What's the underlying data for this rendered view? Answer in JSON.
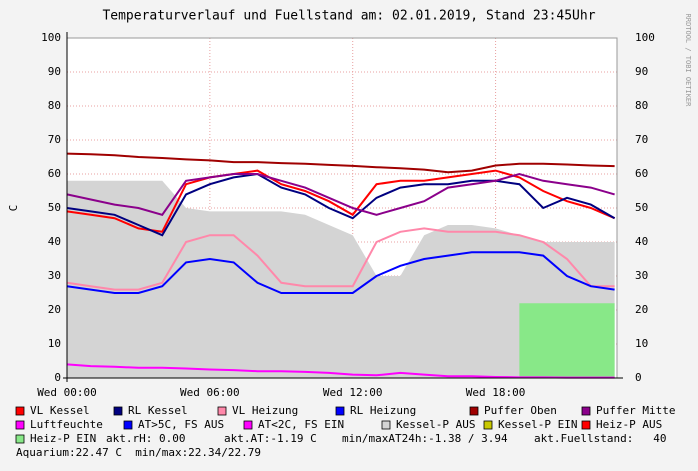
{
  "chart_data": {
    "type": "line",
    "title": "Temperaturverlauf und Fuellstand am: 02.01.2019, Stand 23:45Uhr",
    "ylabel": "C",
    "side_label": "RRDTOOL / TOBI OETIKER",
    "x": [
      0,
      1,
      2,
      3,
      4,
      5,
      6,
      7,
      8,
      9,
      10,
      11,
      12,
      13,
      14,
      15,
      16,
      17,
      18,
      19,
      20,
      21,
      22,
      23
    ],
    "xlim": [
      0,
      23.1
    ],
    "xticks": [
      {
        "value": 0,
        "label": "Wed 00:00"
      },
      {
        "value": 6,
        "label": "Wed 06:00"
      },
      {
        "value": 12,
        "label": "Wed 12:00"
      },
      {
        "value": 18,
        "label": "Wed 18:00"
      }
    ],
    "ylim": [
      0,
      100
    ],
    "yticks": [
      0,
      10,
      20,
      30,
      40,
      50,
      60,
      70,
      80,
      90,
      100
    ],
    "grid": true,
    "series": [
      {
        "name": "VL Kessel",
        "color": "#ff0000",
        "style": "line",
        "values": [
          49,
          48,
          47,
          44,
          43,
          57,
          59,
          60,
          61,
          57,
          55,
          52,
          48,
          57,
          58,
          58,
          59,
          60,
          61,
          59,
          55,
          52,
          50,
          47
        ]
      },
      {
        "name": "RL Kessel",
        "color": "#000080",
        "style": "line",
        "values": [
          50,
          49,
          48,
          45,
          42,
          54,
          57,
          59,
          60,
          56,
          54,
          50,
          47,
          53,
          56,
          57,
          57,
          58,
          58,
          57,
          50,
          53,
          51,
          47
        ]
      },
      {
        "name": "VL Heizung",
        "color": "#ff88aa",
        "style": "line",
        "values": [
          28,
          27,
          26,
          26,
          28,
          40,
          42,
          42,
          36,
          28,
          27,
          27,
          27,
          40,
          43,
          44,
          43,
          43,
          43,
          42,
          40,
          35,
          27,
          27
        ]
      },
      {
        "name": "RL Heizung",
        "color": "#0000ff",
        "style": "line",
        "values": [
          27,
          26,
          25,
          25,
          27,
          34,
          35,
          34,
          28,
          25,
          25,
          25,
          25,
          30,
          33,
          35,
          36,
          37,
          37,
          37,
          36,
          30,
          27,
          26
        ]
      },
      {
        "name": "Puffer Oben",
        "color": "#a00000",
        "style": "line",
        "values": [
          66,
          65.8,
          65.5,
          65,
          64.7,
          64.3,
          64,
          63.5,
          63.5,
          63.2,
          63,
          62.7,
          62.4,
          62,
          61.7,
          61.3,
          60.5,
          61,
          62.5,
          63,
          63,
          62.8,
          62.5,
          62.3
        ]
      },
      {
        "name": "Puffer Mitte",
        "color": "#8b008b",
        "style": "line",
        "values": [
          54,
          52.5,
          51,
          50,
          48,
          58,
          59,
          60,
          60,
          58,
          56,
          53,
          50,
          48,
          50,
          52,
          56,
          57,
          58,
          60,
          58,
          57,
          56,
          54
        ]
      },
      {
        "name": "Luftfeuchte",
        "color": "#ff00ff",
        "style": "line",
        "values": [
          4,
          3.5,
          3.3,
          3,
          3,
          2.8,
          2.5,
          2.3,
          2,
          2,
          1.8,
          1.5,
          1,
          0.8,
          1.5,
          1,
          0.5,
          0.5,
          0.3,
          0.2,
          0.2,
          0.1,
          0.1,
          0.1
        ]
      },
      {
        "name": "AT>5C, FS AUS",
        "color": "#0000ff",
        "style": "line",
        "values": [
          null,
          null,
          null,
          null,
          null,
          null,
          null,
          null,
          null,
          null,
          null,
          null,
          null,
          null,
          null,
          null,
          null,
          null,
          null,
          null,
          null,
          null,
          null,
          null
        ]
      },
      {
        "name": "AT<2C, FS EIN",
        "color": "#ff00ff",
        "style": "line",
        "values": [
          null,
          null,
          null,
          null,
          null,
          null,
          null,
          null,
          null,
          null,
          null,
          null,
          null,
          null,
          null,
          null,
          null,
          null,
          null,
          null,
          null,
          null,
          null,
          null
        ]
      },
      {
        "name": "Kessel-P AUS",
        "color": "#d4d4d4",
        "style": "area",
        "values": [
          58,
          58,
          58,
          58,
          58,
          50,
          49,
          49,
          49,
          49,
          48,
          45,
          42,
          30,
          30,
          42,
          45,
          45,
          44,
          42,
          40,
          40,
          40,
          40
        ]
      },
      {
        "name": "Kessel-P EIN",
        "color": "#c8c800",
        "style": "area",
        "values": [
          null,
          null,
          null,
          null,
          null,
          null,
          null,
          null,
          null,
          null,
          null,
          null,
          null,
          null,
          null,
          null,
          null,
          null,
          null,
          null,
          null,
          null,
          null,
          null
        ]
      },
      {
        "name": "Heiz-P AUS",
        "color": "#ff0000",
        "style": "area",
        "values": [
          null,
          null,
          null,
          null,
          null,
          null,
          null,
          null,
          null,
          null,
          null,
          null,
          null,
          null,
          null,
          null,
          null,
          null,
          null,
          null,
          null,
          null,
          null,
          null
        ]
      },
      {
        "name": "Heiz-P EIN",
        "color": "#88e888",
        "style": "area",
        "values": [
          null,
          null,
          null,
          null,
          null,
          null,
          null,
          null,
          null,
          null,
          null,
          null,
          null,
          null,
          null,
          null,
          null,
          null,
          null,
          22,
          22,
          22,
          22,
          22
        ]
      }
    ],
    "notes": [
      "akt.rH: 0.00",
      "akt.AT:-1.19 C",
      "min/maxAT24h:-1.38 / 3.94",
      "akt.Fuellstand:   40",
      "Aquarium:22.47 C  min/max:22.34/22.79"
    ]
  }
}
